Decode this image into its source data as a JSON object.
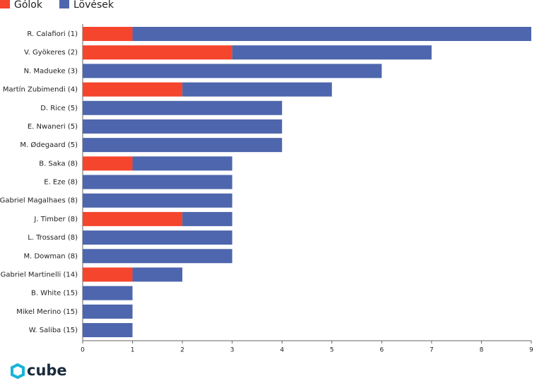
{
  "chart_data": {
    "type": "bar",
    "orientation": "horizontal",
    "stacked": true,
    "categories": [
      "R. Calafiori (1)",
      "V. Gyökeres (2)",
      "N. Madueke (3)",
      "Martín Zubimendi (4)",
      "D. Rice (5)",
      "E. Nwaneri (5)",
      "M. Ødegaard (5)",
      "B. Saka (8)",
      "E. Eze (8)",
      "Gabriel Magalhaes (8)",
      "J. Timber (8)",
      "L. Trossard (8)",
      "M. Dowman (8)",
      "Gabriel Martinelli (14)",
      "B. White (15)",
      "Mikel Merino (15)",
      "W. Saliba (15)"
    ],
    "series": [
      {
        "name": "Gólok",
        "color": "#f5452d",
        "values": [
          1,
          3,
          0,
          2,
          0,
          0,
          0,
          1,
          0,
          0,
          2,
          0,
          0,
          1,
          0,
          0,
          0
        ]
      },
      {
        "name": "Lövések",
        "color": "#4e66ad",
        "values": [
          8,
          4,
          6,
          3,
          4,
          4,
          4,
          2,
          3,
          3,
          1,
          3,
          3,
          1,
          1,
          1,
          1
        ]
      }
    ],
    "xlim": [
      0,
      9
    ],
    "xticks": [
      0,
      1,
      2,
      3,
      4,
      5,
      6,
      7,
      8,
      9
    ],
    "legend": "top-left"
  },
  "logo": "cube"
}
